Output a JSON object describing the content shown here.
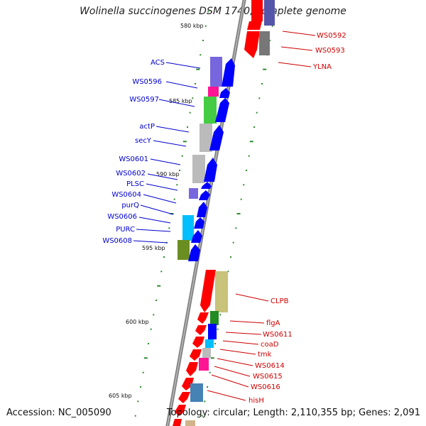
{
  "title": "Wolinella succinogenes DSM 1740, complete genome",
  "accession": "Accession: NC_005090",
  "summary": "Topology: circular; Length: 2,110,355 bp; Genes: 2,091",
  "colors": {
    "forward": "#ff0000",
    "reverse": "#0000ff",
    "backbone": "#888888",
    "tick": "#228b22"
  },
  "scale_labels": [
    "580 kbp",
    "585 kbp",
    "590 kbp",
    "595 kbp",
    "600 kbp",
    "605 kbp"
  ],
  "left_gene_labels": [
    "ACS",
    "WS0596",
    "WS0597",
    "actP",
    "secY",
    "WS0601",
    "WS0602",
    "PLSC",
    "WS0604",
    "purQ",
    "WS0606",
    "PURC",
    "WS0608"
  ],
  "right_gene_labels": [
    "WS0592",
    "WS0593",
    "YLNA",
    "CLPB",
    "flgA",
    "WS0611",
    "coaD",
    "tmk",
    "WS0614",
    "WS0615",
    "WS0616",
    "hisH"
  ]
}
